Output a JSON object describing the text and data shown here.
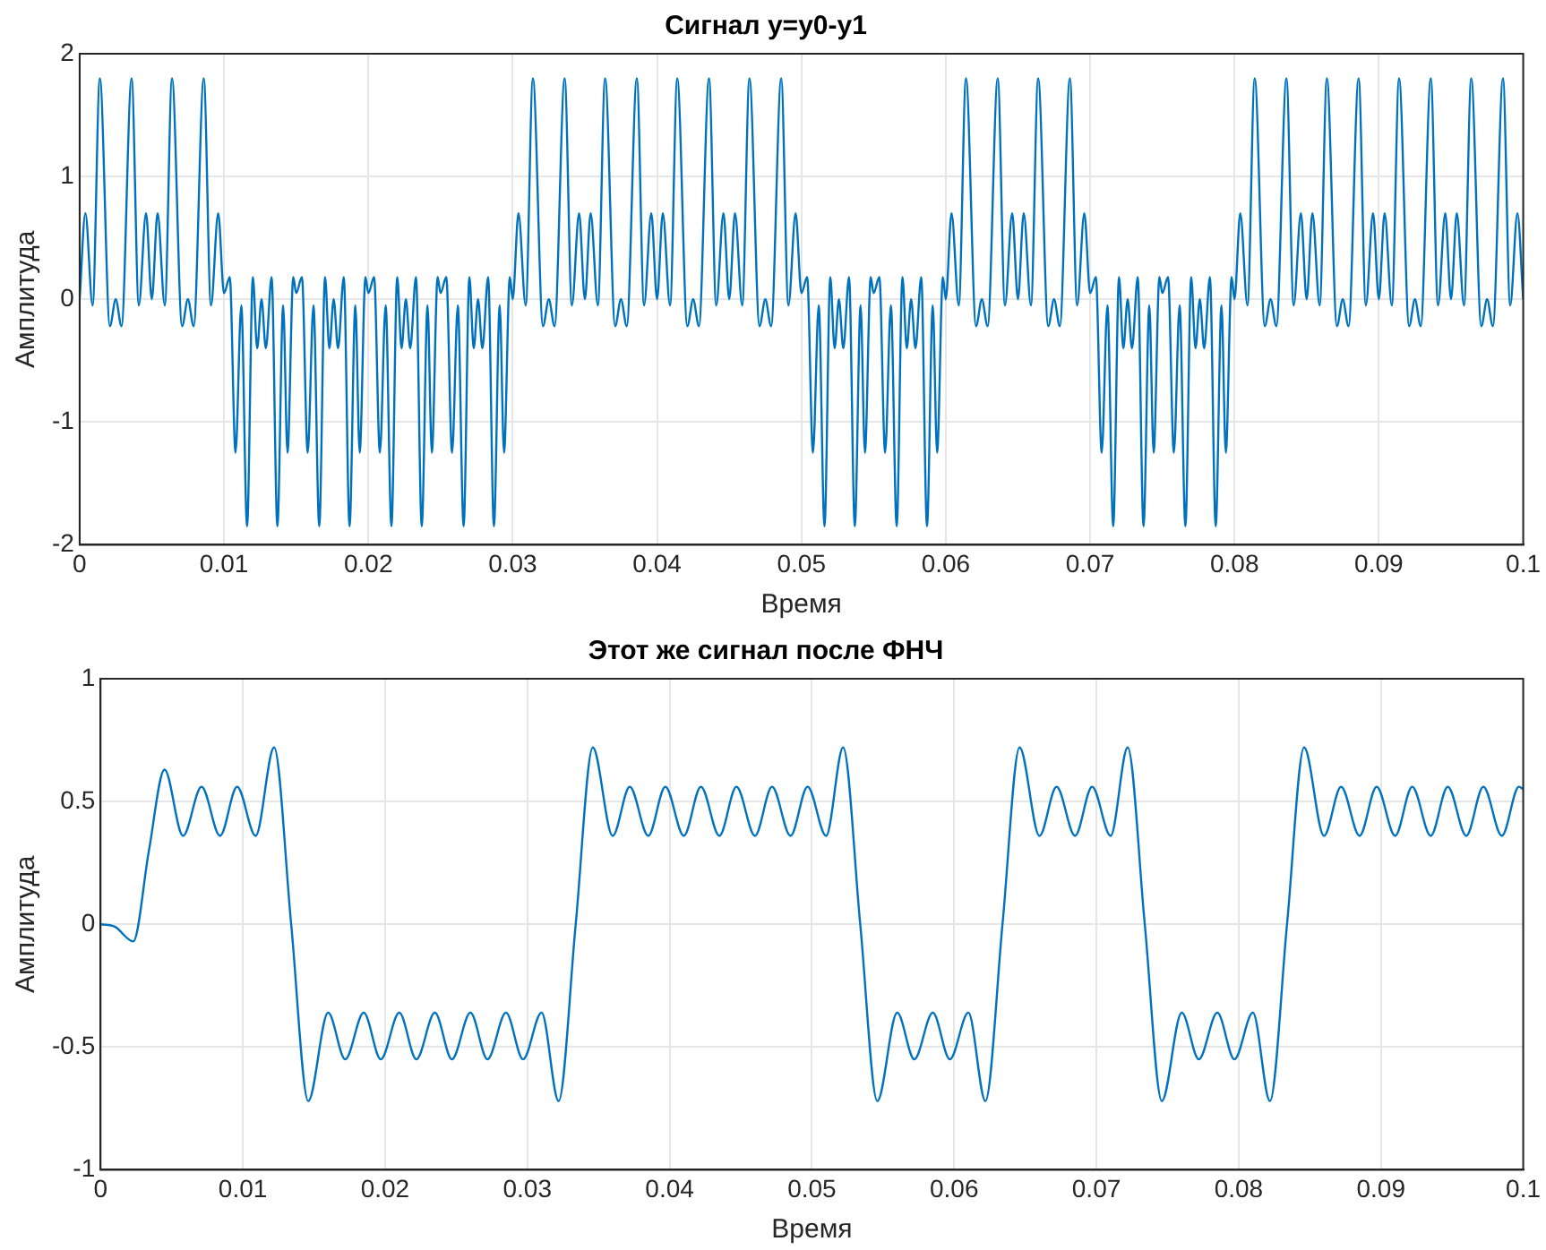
{
  "chart_data": [
    {
      "type": "line",
      "title": "Сигнал y=y0-y1",
      "xlabel": "Время",
      "ylabel": "Амплитуда",
      "xlim": [
        0,
        0.1
      ],
      "xticks": [
        0,
        0.01,
        0.02,
        0.03,
        0.04,
        0.05,
        0.06,
        0.07,
        0.08,
        0.09,
        0.1
      ],
      "ylim": [
        -2,
        2
      ],
      "yticks": [
        -2,
        -1,
        0,
        1,
        2
      ],
      "grid": true,
      "legend": false,
      "marker": "none",
      "line_style": "solid",
      "x": [
        0,
        0.0004,
        0.0009,
        0.0014,
        0.0021,
        0.0025,
        0.0029,
        0.0036,
        0.0041,
        0.0046,
        0.005,
        0.0054,
        0.0059,
        0.0064,
        0.0071,
        0.0075,
        0.0079,
        0.0086,
        0.0091,
        0.0096,
        0.01,
        0.0104,
        0.0108,
        0.0112,
        0.0116,
        0.012,
        0.0123,
        0.0126,
        0.0129,
        0.0133,
        0.0137,
        0.0141,
        0.0144,
        0.0148,
        0.015,
        0.0154,
        0.0158,
        0.0162,
        0.0166,
        0.017,
        0.0173,
        0.0176,
        0.0179,
        0.0183,
        0.0187,
        0.0191,
        0.0194,
        0.0198,
        0.02,
        0.0204,
        0.0208,
        0.0212,
        0.0216,
        0.022,
        0.0223,
        0.0226,
        0.0229,
        0.0233,
        0.0237,
        0.0241,
        0.0244,
        0.0248,
        0.025,
        0.0254,
        0.0258,
        0.0262,
        0.0266,
        0.027,
        0.0273,
        0.0276,
        0.0279,
        0.0283,
        0.0287,
        0.0291,
        0.0294,
        0.0298,
        0.03,
        0.0304,
        0.0309,
        0.0314,
        0.0321,
        0.0325,
        0.0329,
        0.0336,
        0.0341,
        0.0346,
        0.035,
        0.0354,
        0.0359,
        0.0364,
        0.0371,
        0.0375,
        0.0379,
        0.0386,
        0.0391,
        0.0396,
        0.04,
        0.0404,
        0.0409,
        0.0414,
        0.0421,
        0.0425,
        0.0429,
        0.0436,
        0.0441,
        0.0446,
        0.045,
        0.0454,
        0.0459,
        0.0464,
        0.0471,
        0.0475,
        0.0479,
        0.0486,
        0.0491,
        0.0496,
        0.05,
        0.0504,
        0.0508,
        0.0512,
        0.0516,
        0.052,
        0.0523,
        0.0526,
        0.0529,
        0.0533,
        0.0537,
        0.0541,
        0.0544,
        0.0548,
        0.055,
        0.0554,
        0.0558,
        0.0562,
        0.0566,
        0.057,
        0.0573,
        0.0576,
        0.0579,
        0.0583,
        0.0587,
        0.0591,
        0.0594,
        0.0598,
        0.06,
        0.0604,
        0.0609,
        0.0614,
        0.0621,
        0.0625,
        0.0629,
        0.0636,
        0.0641,
        0.0646,
        0.065,
        0.0654,
        0.0659,
        0.0664,
        0.0671,
        0.0675,
        0.0679,
        0.0686,
        0.0691,
        0.0696,
        0.07,
        0.0704,
        0.0708,
        0.0712,
        0.0716,
        0.072,
        0.0723,
        0.0726,
        0.0729,
        0.0733,
        0.0737,
        0.0741,
        0.0744,
        0.0748,
        0.075,
        0.0754,
        0.0758,
        0.0762,
        0.0766,
        0.077,
        0.0773,
        0.0776,
        0.0779,
        0.0783,
        0.0787,
        0.0791,
        0.0794,
        0.0798,
        0.08,
        0.0804,
        0.0809,
        0.0814,
        0.0821,
        0.0825,
        0.0829,
        0.0836,
        0.0841,
        0.0846,
        0.085,
        0.0854,
        0.0859,
        0.0864,
        0.0871,
        0.0875,
        0.0879,
        0.0886,
        0.0891,
        0.0896,
        0.09,
        0.0904,
        0.0909,
        0.0914,
        0.0921,
        0.0925,
        0.0929,
        0.0936,
        0.0941,
        0.0946,
        0.095,
        0.0954,
        0.0959,
        0.0964,
        0.0971,
        0.0975,
        0.0979,
        0.0986,
        0.0991,
        0.0996,
        0.1
      ],
      "series": [
        {
          "color": "#0072bd",
          "values": [
            0,
            0.7,
            -0.05,
            1.8,
            -0.22,
            0,
            -0.22,
            1.8,
            -0.05,
            0.7,
            0,
            0.7,
            -0.05,
            1.8,
            -0.22,
            0,
            -0.22,
            1.8,
            -0.05,
            0.7,
            0.05,
            0.18,
            -1.25,
            -0.05,
            -1.85,
            0.18,
            -0.4,
            0,
            -0.4,
            0.18,
            -1.85,
            -0.05,
            -1.25,
            0.18,
            0.05,
            0.18,
            -1.25,
            -0.05,
            -1.85,
            0.18,
            -0.4,
            0,
            -0.4,
            0.18,
            -1.85,
            -0.05,
            -1.25,
            0.18,
            0.05,
            0.18,
            -1.25,
            -0.05,
            -1.85,
            0.18,
            -0.4,
            0,
            -0.4,
            0.18,
            -1.85,
            -0.05,
            -1.25,
            0.18,
            0.05,
            0.18,
            -1.25,
            -0.05,
            -1.85,
            0.18,
            -0.4,
            0,
            -0.4,
            0.18,
            -1.85,
            -0.05,
            -1.25,
            0.18,
            0,
            0.7,
            -0.05,
            1.8,
            -0.22,
            0,
            -0.22,
            1.8,
            -0.05,
            0.7,
            0,
            0.7,
            -0.05,
            1.8,
            -0.22,
            0,
            -0.22,
            1.8,
            -0.05,
            0.7,
            0,
            0.7,
            -0.05,
            1.8,
            -0.22,
            0,
            -0.22,
            1.8,
            -0.05,
            0.7,
            0,
            0.7,
            -0.05,
            1.8,
            -0.22,
            0,
            -0.22,
            1.8,
            -0.05,
            0.7,
            0.05,
            0.18,
            -1.25,
            -0.05,
            -1.85,
            0.18,
            -0.4,
            0,
            -0.4,
            0.18,
            -1.85,
            -0.05,
            -1.25,
            0.18,
            0.05,
            0.18,
            -1.25,
            -0.05,
            -1.85,
            0.18,
            -0.4,
            0,
            -0.4,
            0.18,
            -1.85,
            -0.05,
            -1.25,
            0.18,
            0,
            0.7,
            -0.05,
            1.8,
            -0.22,
            0,
            -0.22,
            1.8,
            -0.05,
            0.7,
            0,
            0.7,
            -0.05,
            1.8,
            -0.22,
            0,
            -0.22,
            1.8,
            -0.05,
            0.7,
            0.05,
            0.18,
            -1.25,
            -0.05,
            -1.85,
            0.18,
            -0.4,
            0,
            -0.4,
            0.18,
            -1.85,
            -0.05,
            -1.25,
            0.18,
            0.05,
            0.18,
            -1.25,
            -0.05,
            -1.85,
            0.18,
            -0.4,
            0,
            -0.4,
            0.18,
            -1.85,
            -0.05,
            -1.25,
            0.18,
            0,
            0.7,
            -0.05,
            1.8,
            -0.22,
            0,
            -0.22,
            1.8,
            -0.05,
            0.7,
            0,
            0.7,
            -0.05,
            1.8,
            -0.22,
            0,
            -0.22,
            1.8,
            -0.05,
            0.7,
            0,
            0.7,
            -0.05,
            1.8,
            -0.22,
            0,
            -0.22,
            1.8,
            -0.05,
            0.7,
            0,
            0.7,
            -0.05,
            1.8,
            -0.22,
            0,
            -0.22,
            1.8,
            -0.05,
            0.7,
            0
          ]
        }
      ]
    },
    {
      "type": "line",
      "title": "Этот же сигнал после ФНЧ",
      "xlabel": "Время",
      "ylabel": "Амплитуда",
      "xlim": [
        0,
        0.1
      ],
      "xticks": [
        0,
        0.01,
        0.02,
        0.03,
        0.04,
        0.05,
        0.06,
        0.07,
        0.08,
        0.09,
        0.1
      ],
      "ylim": [
        -1,
        1
      ],
      "yticks": [
        -1,
        -0.5,
        0,
        0.5,
        1
      ],
      "grid": true,
      "legend": false,
      "marker": "none",
      "line_style": "solid",
      "x": [
        0,
        0.001,
        0.0023,
        0.0034,
        0.0045,
        0.0058,
        0.0071,
        0.0084,
        0.0096,
        0.0109,
        0.0122,
        0.0134,
        0.0146,
        0.016,
        0.0172,
        0.0185,
        0.0197,
        0.021,
        0.0222,
        0.0235,
        0.0247,
        0.026,
        0.0272,
        0.0285,
        0.0297,
        0.031,
        0.0322,
        0.0334,
        0.0346,
        0.036,
        0.0372,
        0.0385,
        0.0397,
        0.041,
        0.0422,
        0.0435,
        0.0447,
        0.046,
        0.0472,
        0.0485,
        0.0497,
        0.051,
        0.0522,
        0.0534,
        0.0546,
        0.056,
        0.0572,
        0.0585,
        0.0597,
        0.061,
        0.0622,
        0.0634,
        0.0646,
        0.066,
        0.0672,
        0.0685,
        0.0697,
        0.071,
        0.0722,
        0.0734,
        0.0746,
        0.076,
        0.0772,
        0.0785,
        0.0797,
        0.081,
        0.0822,
        0.0834,
        0.0846,
        0.086,
        0.0872,
        0.0885,
        0.0897,
        0.091,
        0.0922,
        0.0935,
        0.0947,
        0.096,
        0.0972,
        0.0985,
        0.0997,
        0.1
      ],
      "series": [
        {
          "color": "#0072bd",
          "values": [
            0,
            -0.01,
            -0.07,
            0.3,
            0.63,
            0.36,
            0.56,
            0.36,
            0.56,
            0.36,
            0.72,
            0,
            -0.72,
            -0.36,
            -0.55,
            -0.36,
            -0.55,
            -0.36,
            -0.55,
            -0.36,
            -0.55,
            -0.36,
            -0.55,
            -0.36,
            -0.55,
            -0.36,
            -0.72,
            0,
            0.72,
            0.36,
            0.56,
            0.36,
            0.56,
            0.36,
            0.56,
            0.36,
            0.56,
            0.36,
            0.56,
            0.36,
            0.56,
            0.36,
            0.72,
            0,
            -0.72,
            -0.36,
            -0.55,
            -0.36,
            -0.55,
            -0.36,
            -0.72,
            0,
            0.72,
            0.36,
            0.56,
            0.36,
            0.56,
            0.36,
            0.72,
            0,
            -0.72,
            -0.36,
            -0.55,
            -0.36,
            -0.55,
            -0.36,
            -0.72,
            0,
            0.72,
            0.36,
            0.56,
            0.36,
            0.56,
            0.36,
            0.56,
            0.36,
            0.56,
            0.36,
            0.56,
            0.36,
            0.56,
            0.55
          ]
        }
      ]
    }
  ]
}
